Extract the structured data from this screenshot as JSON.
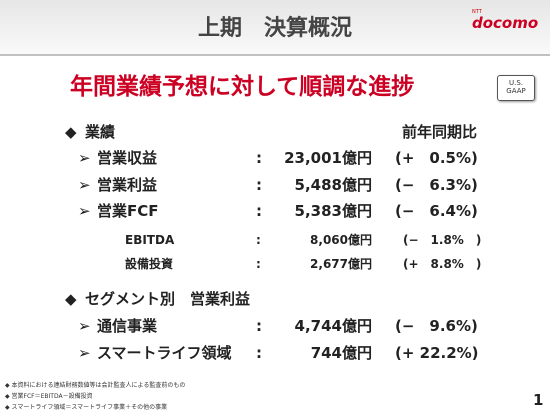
{
  "header": {
    "title": "上期　決算概況",
    "logo_small": "NTT",
    "logo": "docomo"
  },
  "headline": "年間業績予想に対して順調な進捗",
  "badge": [
    "U.S.",
    "GAAP"
  ],
  "results": {
    "heading": "業績",
    "column_header": "前年同期比",
    "rows": [
      {
        "label": "営業収益",
        "sep": ":",
        "value": "23,001億円",
        "change": "(+　0.5%)"
      },
      {
        "label": "営業利益",
        "sep": ":",
        "value": "5,488億円",
        "change": "(−　6.3%)"
      },
      {
        "label": "営業FCF",
        "sep": ":",
        "value": "5,383億円",
        "change": "(−　6.4%)"
      },
      {
        "label": "EBITDA",
        "sep": ":",
        "value": "8,060億円",
        "change": "(−　1.8%　)"
      },
      {
        "label": "設備投資",
        "sep": ":",
        "value": "2,677億円",
        "change": "(+　8.8%　)"
      }
    ]
  },
  "segments": {
    "heading": "セグメント別　営業利益",
    "rows": [
      {
        "label": "通信事業",
        "sep": ":",
        "value": "4,744億円",
        "change": "(−　9.6%)"
      },
      {
        "label": "スマートライフ領域",
        "sep": ":",
        "value": "744億円",
        "change": "(+ 22.2%)"
      }
    ]
  },
  "footnotes": [
    "本資料における連結財務数値等は会計監査人による監査前のもの",
    "営業FCF＝EBITDA－設備投資",
    "スマートライフ領域＝スマートライフ事業＋その他の事業"
  ],
  "page_number": "1"
}
